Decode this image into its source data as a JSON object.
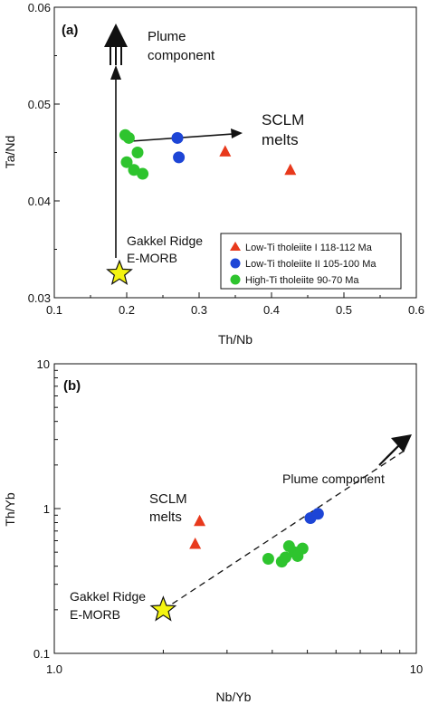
{
  "chart_data": [
    {
      "panel_label": "(a)",
      "type": "scatter",
      "xlabel": "Th/Nb",
      "ylabel": "Ta/Nd",
      "xlim": [
        0.1,
        0.6
      ],
      "ylim": [
        0.03,
        0.06
      ],
      "x_ticks": [
        0.1,
        0.2,
        0.3,
        0.4,
        0.5,
        0.6
      ],
      "x_tick_labels": [
        "0.1",
        "0.2",
        "0.3",
        "0.4",
        "0.5",
        "0.6"
      ],
      "y_ticks": [
        0.03,
        0.04,
        0.05,
        0.06
      ],
      "y_tick_labels": [
        "0.03",
        "0.04",
        "0.05",
        "0.06"
      ],
      "grid": false,
      "legend_position": "bottom-right",
      "series": [
        {
          "name": "Low-Ti tholeiite I  118-112 Ma",
          "marker": "triangle",
          "color": "#e8391c",
          "points": [
            [
              0.336,
              0.0451
            ],
            [
              0.426,
              0.0432
            ]
          ]
        },
        {
          "name": "Low-Ti tholeiite II  105-100 Ma",
          "marker": "circle",
          "color": "#1d45d6",
          "points": [
            [
              0.27,
              0.0465
            ],
            [
              0.272,
              0.0445
            ]
          ]
        },
        {
          "name": "High-Ti tholeiite  90-70 Ma",
          "marker": "circle",
          "color": "#2ec42e",
          "points": [
            [
              0.198,
              0.0468
            ],
            [
              0.203,
              0.0465
            ],
            [
              0.2,
              0.044
            ],
            [
              0.215,
              0.045
            ],
            [
              0.21,
              0.0432
            ],
            [
              0.222,
              0.0428
            ]
          ]
        }
      ],
      "reference_points": [
        {
          "label_lines": [
            "Gakkel Ridge",
            "E-MORB"
          ],
          "marker": "star",
          "color": "#f4f411",
          "x": 0.19,
          "y": 0.0325
        }
      ],
      "annotations": [
        {
          "id": "plume",
          "lines": [
            "Plume",
            "component"
          ]
        },
        {
          "id": "sclm",
          "lines": [
            "SCLM",
            "melts"
          ]
        }
      ]
    },
    {
      "panel_label": "(b)",
      "type": "scatter",
      "xlabel": "Nb/Yb",
      "ylabel": "Th/Yb",
      "xscale": "log",
      "yscale": "log",
      "xlim": [
        1,
        10
      ],
      "ylim": [
        0.1,
        10
      ],
      "x_tick_labels": [
        "1.0",
        "10"
      ],
      "y_tick_labels": [
        "0.1",
        "1",
        "10"
      ],
      "grid": false,
      "series": [
        {
          "name": "Low-Ti tholeiite I",
          "marker": "triangle",
          "color": "#e8391c",
          "points": [
            [
              2.52,
              0.82
            ],
            [
              2.45,
              0.57
            ]
          ]
        },
        {
          "name": "Low-Ti tholeiite II",
          "marker": "circle",
          "color": "#1d45d6",
          "points": [
            [
              5.1,
              0.86
            ],
            [
              5.35,
              0.92
            ]
          ]
        },
        {
          "name": "High-Ti tholeiite",
          "marker": "circle",
          "color": "#2ec42e",
          "points": [
            [
              3.9,
              0.45
            ],
            [
              4.25,
              0.43
            ],
            [
              4.35,
              0.46
            ],
            [
              4.45,
              0.55
            ],
            [
              4.6,
              0.5
            ],
            [
              4.7,
              0.47
            ],
            [
              4.85,
              0.53
            ]
          ]
        }
      ],
      "reference_points": [
        {
          "label_lines": [
            "Gakkel Ridge",
            "E-MORB"
          ],
          "marker": "star",
          "color": "#f4f411",
          "x": 2.0,
          "y": 0.2
        }
      ],
      "trend_line": {
        "from": [
          2.0,
          0.2
        ],
        "to": [
          10,
          2.4
        ],
        "style": "dashed"
      },
      "annotations": [
        {
          "id": "sclm",
          "lines": [
            "SCLM",
            "melts"
          ]
        },
        {
          "id": "plume",
          "lines": [
            "Plume component"
          ]
        }
      ]
    }
  ]
}
